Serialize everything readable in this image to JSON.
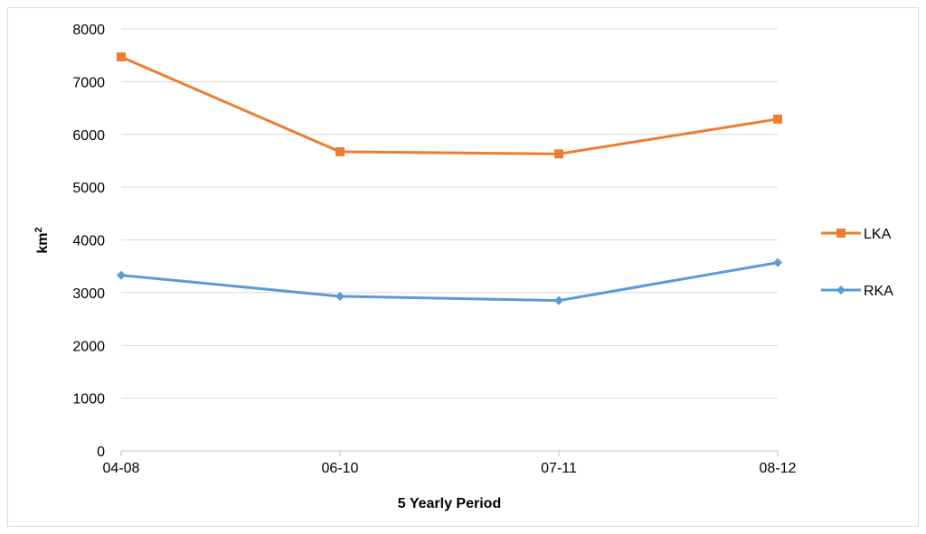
{
  "chart_data": {
    "type": "line",
    "categories": [
      "04-08",
      "06-10",
      "07-11",
      "08-12"
    ],
    "series": [
      {
        "name": "LKA",
        "values": [
          7470,
          5670,
          5630,
          6290
        ],
        "color": "#ed7d31",
        "marker": "square"
      },
      {
        "name": "RKA",
        "values": [
          3330,
          2930,
          2850,
          3570
        ],
        "color": "#5b9bd5",
        "marker": "diamond"
      }
    ],
    "xlabel": "5 Yearly Period",
    "ylabel_base": "km",
    "ylabel_sup": "2",
    "ylim": [
      0,
      8000
    ],
    "yticks": [
      0,
      1000,
      2000,
      3000,
      4000,
      5000,
      6000,
      7000,
      8000
    ],
    "grid": true,
    "legend_position": "right"
  }
}
